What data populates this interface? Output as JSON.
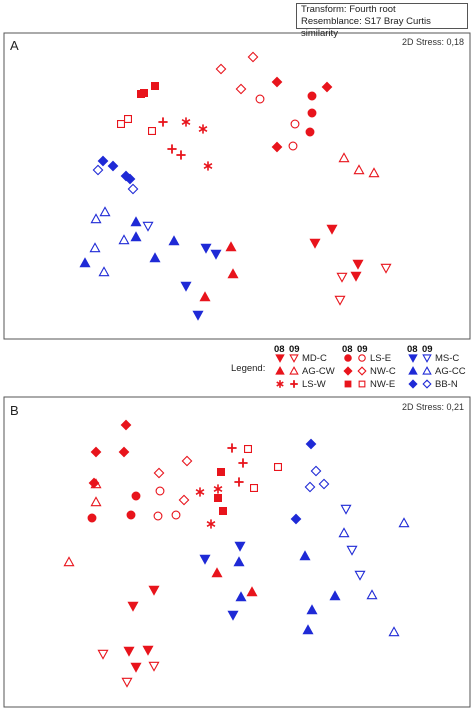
{
  "header": {
    "transform": "Transform: Fourth root",
    "resemblance": "Resemblance: S17 Bray Curtis similarity"
  },
  "legend": {
    "title": "Legend:",
    "year_headers": [
      "08",
      "09"
    ],
    "entries": [
      {
        "label": "MD-C",
        "color": "#e8141c",
        "shape": "tri-down"
      },
      {
        "label": "AG-CW",
        "color": "#e8141c",
        "shape": "tri-up"
      },
      {
        "label": "LS-W",
        "color": "#e8141c",
        "shape": "asterisk"
      },
      {
        "label": "LS-E",
        "color": "#e8141c",
        "shape": "circle"
      },
      {
        "label": "NW-C",
        "color": "#e8141c",
        "shape": "diamond"
      },
      {
        "label": "NW-E",
        "color": "#e8141c",
        "shape": "square"
      },
      {
        "label": "MS-C",
        "color": "#1f2ad6",
        "shape": "tri-down"
      },
      {
        "label": "AG-CC",
        "color": "#1f2ad6",
        "shape": "tri-up"
      },
      {
        "label": "BB-N",
        "color": "#1f2ad6",
        "shape": "diamond"
      }
    ]
  },
  "chart_data": [
    {
      "type": "scatter",
      "panel": "A",
      "stress": "2D Stress: 0,18",
      "points": [
        {
          "g": "NW-E",
          "y": "08",
          "x": 141,
          "v": 94
        },
        {
          "g": "NW-E",
          "y": "08",
          "x": 144,
          "v": 93
        },
        {
          "g": "NW-E",
          "y": "08",
          "x": 155,
          "v": 86
        },
        {
          "g": "NW-E",
          "y": "09",
          "x": 121,
          "v": 124
        },
        {
          "g": "NW-E",
          "y": "09",
          "x": 128,
          "v": 119
        },
        {
          "g": "NW-E",
          "y": "09",
          "x": 152,
          "v": 131
        },
        {
          "g": "LS-W",
          "y": "09",
          "x": 163,
          "v": 122
        },
        {
          "g": "LS-W",
          "y": "09",
          "x": 172,
          "v": 149
        },
        {
          "g": "LS-W",
          "y": "09",
          "x": 181,
          "v": 155
        },
        {
          "g": "LS-W",
          "y": "08",
          "x": 186,
          "v": 122
        },
        {
          "g": "LS-W",
          "y": "08",
          "x": 203,
          "v": 129
        },
        {
          "g": "LS-W",
          "y": "08",
          "x": 208,
          "v": 166
        },
        {
          "g": "NW-C",
          "y": "09",
          "x": 221,
          "v": 69
        },
        {
          "g": "NW-C",
          "y": "09",
          "x": 253,
          "v": 57
        },
        {
          "g": "NW-C",
          "y": "09",
          "x": 241,
          "v": 89
        },
        {
          "g": "NW-C",
          "y": "08",
          "x": 277,
          "v": 82
        },
        {
          "g": "NW-C",
          "y": "08",
          "x": 327,
          "v": 87
        },
        {
          "g": "NW-C",
          "y": "08",
          "x": 277,
          "v": 147
        },
        {
          "g": "LS-E",
          "y": "09",
          "x": 260,
          "v": 99
        },
        {
          "g": "LS-E",
          "y": "09",
          "x": 295,
          "v": 124
        },
        {
          "g": "LS-E",
          "y": "09",
          "x": 293,
          "v": 146
        },
        {
          "g": "LS-E",
          "y": "08",
          "x": 312,
          "v": 96
        },
        {
          "g": "LS-E",
          "y": "08",
          "x": 312,
          "v": 113
        },
        {
          "g": "LS-E",
          "y": "08",
          "x": 310,
          "v": 132
        },
        {
          "g": "AG-CW",
          "y": "09",
          "x": 344,
          "v": 158
        },
        {
          "g": "AG-CW",
          "y": "09",
          "x": 359,
          "v": 170
        },
        {
          "g": "AG-CW",
          "y": "09",
          "x": 374,
          "v": 173
        },
        {
          "g": "MD-C",
          "y": "08",
          "x": 315,
          "v": 243
        },
        {
          "g": "MD-C",
          "y": "08",
          "x": 332,
          "v": 229
        },
        {
          "g": "MD-C",
          "y": "08",
          "x": 358,
          "v": 264
        },
        {
          "g": "MD-C",
          "y": "08",
          "x": 356,
          "v": 276
        },
        {
          "g": "MD-C",
          "y": "09",
          "x": 342,
          "v": 277
        },
        {
          "g": "MD-C",
          "y": "09",
          "x": 386,
          "v": 268
        },
        {
          "g": "MD-C",
          "y": "09",
          "x": 340,
          "v": 300
        },
        {
          "g": "BB-N",
          "y": "08",
          "x": 103,
          "v": 161
        },
        {
          "g": "BB-N",
          "y": "08",
          "x": 113,
          "v": 166
        },
        {
          "g": "BB-N",
          "y": "08",
          "x": 126,
          "v": 176
        },
        {
          "g": "BB-N",
          "y": "08",
          "x": 130,
          "v": 179
        },
        {
          "g": "BB-N",
          "y": "09",
          "x": 98,
          "v": 170
        },
        {
          "g": "BB-N",
          "y": "09",
          "x": 133,
          "v": 189
        },
        {
          "g": "AG-CC",
          "y": "09",
          "x": 105,
          "v": 212
        },
        {
          "g": "AG-CC",
          "y": "09",
          "x": 96,
          "v": 219
        },
        {
          "g": "AG-CC",
          "y": "09",
          "x": 95,
          "v": 248
        },
        {
          "g": "AG-CC",
          "y": "09",
          "x": 104,
          "v": 272
        },
        {
          "g": "AG-CC",
          "y": "09",
          "x": 124,
          "v": 240
        },
        {
          "g": "AG-CC",
          "y": "08",
          "x": 85,
          "v": 263
        },
        {
          "g": "AG-CC",
          "y": "08",
          "x": 136,
          "v": 222
        },
        {
          "g": "AG-CC",
          "y": "08",
          "x": 136,
          "v": 237
        },
        {
          "g": "AG-CC",
          "y": "08",
          "x": 174,
          "v": 241
        },
        {
          "g": "AG-CC",
          "y": "08",
          "x": 155,
          "v": 258
        },
        {
          "g": "MS-C",
          "y": "09",
          "x": 148,
          "v": 226
        },
        {
          "g": "MS-C",
          "y": "08",
          "x": 206,
          "v": 248
        },
        {
          "g": "MS-C",
          "y": "08",
          "x": 216,
          "v": 254
        },
        {
          "g": "MS-C",
          "y": "08",
          "x": 186,
          "v": 286
        },
        {
          "g": "MS-C",
          "y": "08",
          "x": 198,
          "v": 315
        },
        {
          "g": "AG-CW",
          "y": "08",
          "x": 231,
          "v": 247
        },
        {
          "g": "AG-CW",
          "y": "08",
          "x": 233,
          "v": 274
        },
        {
          "g": "AG-CW",
          "y": "08",
          "x": 205,
          "v": 297
        }
      ]
    },
    {
      "type": "scatter",
      "panel": "B",
      "stress": "2D Stress: 0,21",
      "points": [
        {
          "g": "NW-C",
          "y": "08",
          "x": 126,
          "v": 425
        },
        {
          "g": "NW-C",
          "y": "08",
          "x": 96,
          "v": 452
        },
        {
          "g": "NW-C",
          "y": "08",
          "x": 124,
          "v": 452
        },
        {
          "g": "NW-C",
          "y": "08",
          "x": 94,
          "v": 483
        },
        {
          "g": "AG-CW",
          "y": "09",
          "x": 96,
          "v": 484
        },
        {
          "g": "AG-CW",
          "y": "09",
          "x": 96,
          "v": 502
        },
        {
          "g": "AG-CW",
          "y": "09",
          "x": 69,
          "v": 562
        },
        {
          "g": "LS-E",
          "y": "08",
          "x": 136,
          "v": 496
        },
        {
          "g": "LS-E",
          "y": "08",
          "x": 92,
          "v": 518
        },
        {
          "g": "LS-E",
          "y": "08",
          "x": 131,
          "v": 515
        },
        {
          "g": "NW-C",
          "y": "09",
          "x": 159,
          "v": 473
        },
        {
          "g": "NW-C",
          "y": "09",
          "x": 187,
          "v": 461
        },
        {
          "g": "NW-C",
          "y": "09",
          "x": 184,
          "v": 500
        },
        {
          "g": "LS-E",
          "y": "09",
          "x": 160,
          "v": 491
        },
        {
          "g": "LS-E",
          "y": "09",
          "x": 158,
          "v": 516
        },
        {
          "g": "LS-E",
          "y": "09",
          "x": 176,
          "v": 515
        },
        {
          "g": "LS-W",
          "y": "08",
          "x": 200,
          "v": 492
        },
        {
          "g": "LS-W",
          "y": "08",
          "x": 218,
          "v": 489
        },
        {
          "g": "LS-W",
          "y": "08",
          "x": 211,
          "v": 524
        },
        {
          "g": "LS-W",
          "y": "09",
          "x": 232,
          "v": 448
        },
        {
          "g": "LS-W",
          "y": "09",
          "x": 243,
          "v": 463
        },
        {
          "g": "LS-W",
          "y": "09",
          "x": 239,
          "v": 482
        },
        {
          "g": "NW-E",
          "y": "08",
          "x": 221,
          "v": 472
        },
        {
          "g": "NW-E",
          "y": "08",
          "x": 218,
          "v": 498
        },
        {
          "g": "NW-E",
          "y": "08",
          "x": 223,
          "v": 511
        },
        {
          "g": "NW-E",
          "y": "09",
          "x": 248,
          "v": 449
        },
        {
          "g": "NW-E",
          "y": "09",
          "x": 278,
          "v": 467
        },
        {
          "g": "NW-E",
          "y": "09",
          "x": 254,
          "v": 488
        },
        {
          "g": "BB-N",
          "y": "08",
          "x": 311,
          "v": 444
        },
        {
          "g": "BB-N",
          "y": "08",
          "x": 296,
          "v": 519
        },
        {
          "g": "BB-N",
          "y": "09",
          "x": 316,
          "v": 471
        },
        {
          "g": "BB-N",
          "y": "09",
          "x": 324,
          "v": 484
        },
        {
          "g": "BB-N",
          "y": "09",
          "x": 310,
          "v": 487
        },
        {
          "g": "MS-C",
          "y": "09",
          "x": 346,
          "v": 509
        },
        {
          "g": "MS-C",
          "y": "09",
          "x": 352,
          "v": 550
        },
        {
          "g": "MS-C",
          "y": "09",
          "x": 360,
          "v": 575
        },
        {
          "g": "AG-CC",
          "y": "09",
          "x": 404,
          "v": 523
        },
        {
          "g": "AG-CC",
          "y": "09",
          "x": 344,
          "v": 533
        },
        {
          "g": "AG-CC",
          "y": "09",
          "x": 372,
          "v": 595
        },
        {
          "g": "AG-CC",
          "y": "09",
          "x": 394,
          "v": 632
        },
        {
          "g": "MS-C",
          "y": "08",
          "x": 240,
          "v": 546
        },
        {
          "g": "MS-C",
          "y": "08",
          "x": 205,
          "v": 559
        },
        {
          "g": "MS-C",
          "y": "08",
          "x": 233,
          "v": 615
        },
        {
          "g": "AG-CC",
          "y": "08",
          "x": 239,
          "v": 562
        },
        {
          "g": "AG-CC",
          "y": "08",
          "x": 241,
          "v": 597
        },
        {
          "g": "AG-CC",
          "y": "08",
          "x": 305,
          "v": 556
        },
        {
          "g": "AG-CC",
          "y": "08",
          "x": 335,
          "v": 596
        },
        {
          "g": "AG-CC",
          "y": "08",
          "x": 312,
          "v": 610
        },
        {
          "g": "AG-CC",
          "y": "08",
          "x": 308,
          "v": 630
        },
        {
          "g": "AG-CW",
          "y": "08",
          "x": 217,
          "v": 573
        },
        {
          "g": "AG-CW",
          "y": "08",
          "x": 252,
          "v": 592
        },
        {
          "g": "MD-C",
          "y": "08",
          "x": 154,
          "v": 590
        },
        {
          "g": "MD-C",
          "y": "08",
          "x": 133,
          "v": 606
        },
        {
          "g": "MD-C",
          "y": "08",
          "x": 129,
          "v": 651
        },
        {
          "g": "MD-C",
          "y": "08",
          "x": 148,
          "v": 650
        },
        {
          "g": "MD-C",
          "y": "08",
          "x": 136,
          "v": 667
        },
        {
          "g": "MD-C",
          "y": "09",
          "x": 103,
          "v": 654
        },
        {
          "g": "MD-C",
          "y": "09",
          "x": 154,
          "v": 666
        },
        {
          "g": "MD-C",
          "y": "09",
          "x": 127,
          "v": 682
        }
      ]
    }
  ]
}
